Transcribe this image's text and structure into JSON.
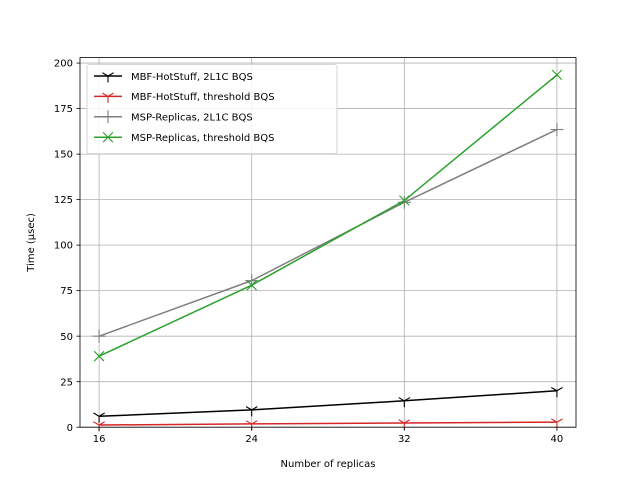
{
  "chart_data": {
    "type": "line",
    "title": "",
    "xlabel": "Number of replicas",
    "ylabel": "Time (µsec)",
    "x": [
      16,
      24,
      32,
      40
    ],
    "xticks": [
      "16",
      "24",
      "32",
      "40"
    ],
    "xlim": [
      15,
      41
    ],
    "ylim": [
      0,
      203
    ],
    "yticks": [
      0,
      25,
      50,
      75,
      100,
      125,
      150,
      175,
      200
    ],
    "grid": true,
    "legend": "top-left",
    "series": [
      {
        "name": "MBF-HotStuff, 2L1C BQS",
        "color": "#000000",
        "marker": "tri-down",
        "values": [
          6,
          9.5,
          14.5,
          20
        ]
      },
      {
        "name": "MBF-HotStuff, threshold BQS",
        "color": "#d62728",
        "marker": "tri-down",
        "values": [
          1.2,
          1.8,
          2.3,
          2.8
        ]
      },
      {
        "name": "MSP-Replicas, 2L1C BQS",
        "color": "#7f7f7f",
        "marker": "plus",
        "values": [
          50,
          80.5,
          123.5,
          163.5
        ]
      },
      {
        "name": "MSP-Replicas, threshold BQS",
        "color": "#2ca02c",
        "marker": "x",
        "values": [
          39,
          78,
          124.5,
          193.5
        ]
      }
    ]
  }
}
